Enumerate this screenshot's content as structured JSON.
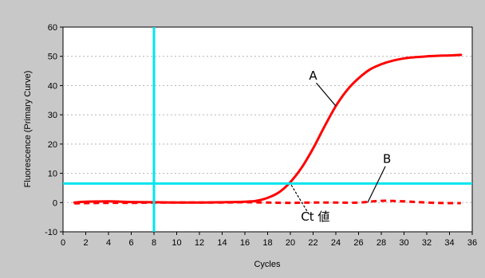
{
  "chart_data": {
    "type": "line",
    "xlabel": "Cycles",
    "ylabel": "Fluorescence (Primary Curve)",
    "xlim": [
      0,
      36
    ],
    "ylim": [
      -10,
      60
    ],
    "xticks": [
      0,
      2,
      4,
      6,
      8,
      10,
      12,
      14,
      16,
      18,
      20,
      22,
      24,
      26,
      28,
      30,
      32,
      34,
      36
    ],
    "yticks": [
      -10,
      0,
      10,
      20,
      30,
      40,
      50,
      60
    ],
    "grid": "horizontal dotted",
    "threshold": 6.5,
    "vertical_marker_x": 8,
    "colors": {
      "series": "#ff0000",
      "threshold": "#00e5ee",
      "background": "#c8c8c8",
      "plot": "#ffffff"
    },
    "series": [
      {
        "style": "solid",
        "x": [
          1,
          2,
          4,
          6,
          8,
          10,
          12,
          14,
          16,
          17,
          18,
          19,
          20,
          21,
          22,
          23,
          24,
          25,
          26,
          27,
          28,
          29,
          30,
          31,
          32,
          33,
          34,
          35
        ],
        "y": [
          0,
          0.3,
          0.4,
          0.2,
          0.1,
          0,
          0,
          0.1,
          0.3,
          0.6,
          1.6,
          3.5,
          7,
          12,
          18.5,
          26,
          33,
          38.5,
          42.5,
          45.5,
          47.3,
          48.5,
          49.3,
          49.7,
          50,
          50.2,
          50.3,
          50.5
        ]
      },
      {
        "style": "dashed",
        "x": [
          1,
          2,
          4,
          6,
          8,
          10,
          12,
          14,
          16,
          18,
          20,
          22,
          24,
          26,
          28,
          30,
          32,
          34,
          35
        ],
        "y": [
          -0.3,
          -0.2,
          -0.1,
          -0.1,
          0,
          0,
          0,
          0,
          0.1,
          0,
          -0.1,
          0,
          0,
          0,
          0.6,
          0.4,
          0,
          -0.2,
          -0.2
        ]
      }
    ],
    "annotations": [
      {
        "text": "A",
        "x": 22.0,
        "y": 42.0,
        "tx": 24.0,
        "ty": 33.0
      },
      {
        "text": "B",
        "x": 28.5,
        "y": 13.5,
        "tx": 26.8,
        "ty": 0.0
      },
      {
        "text": "Ct 値",
        "x": 22.2,
        "y": -6.2,
        "tx": 20.0,
        "ty": 6.5
      }
    ]
  }
}
